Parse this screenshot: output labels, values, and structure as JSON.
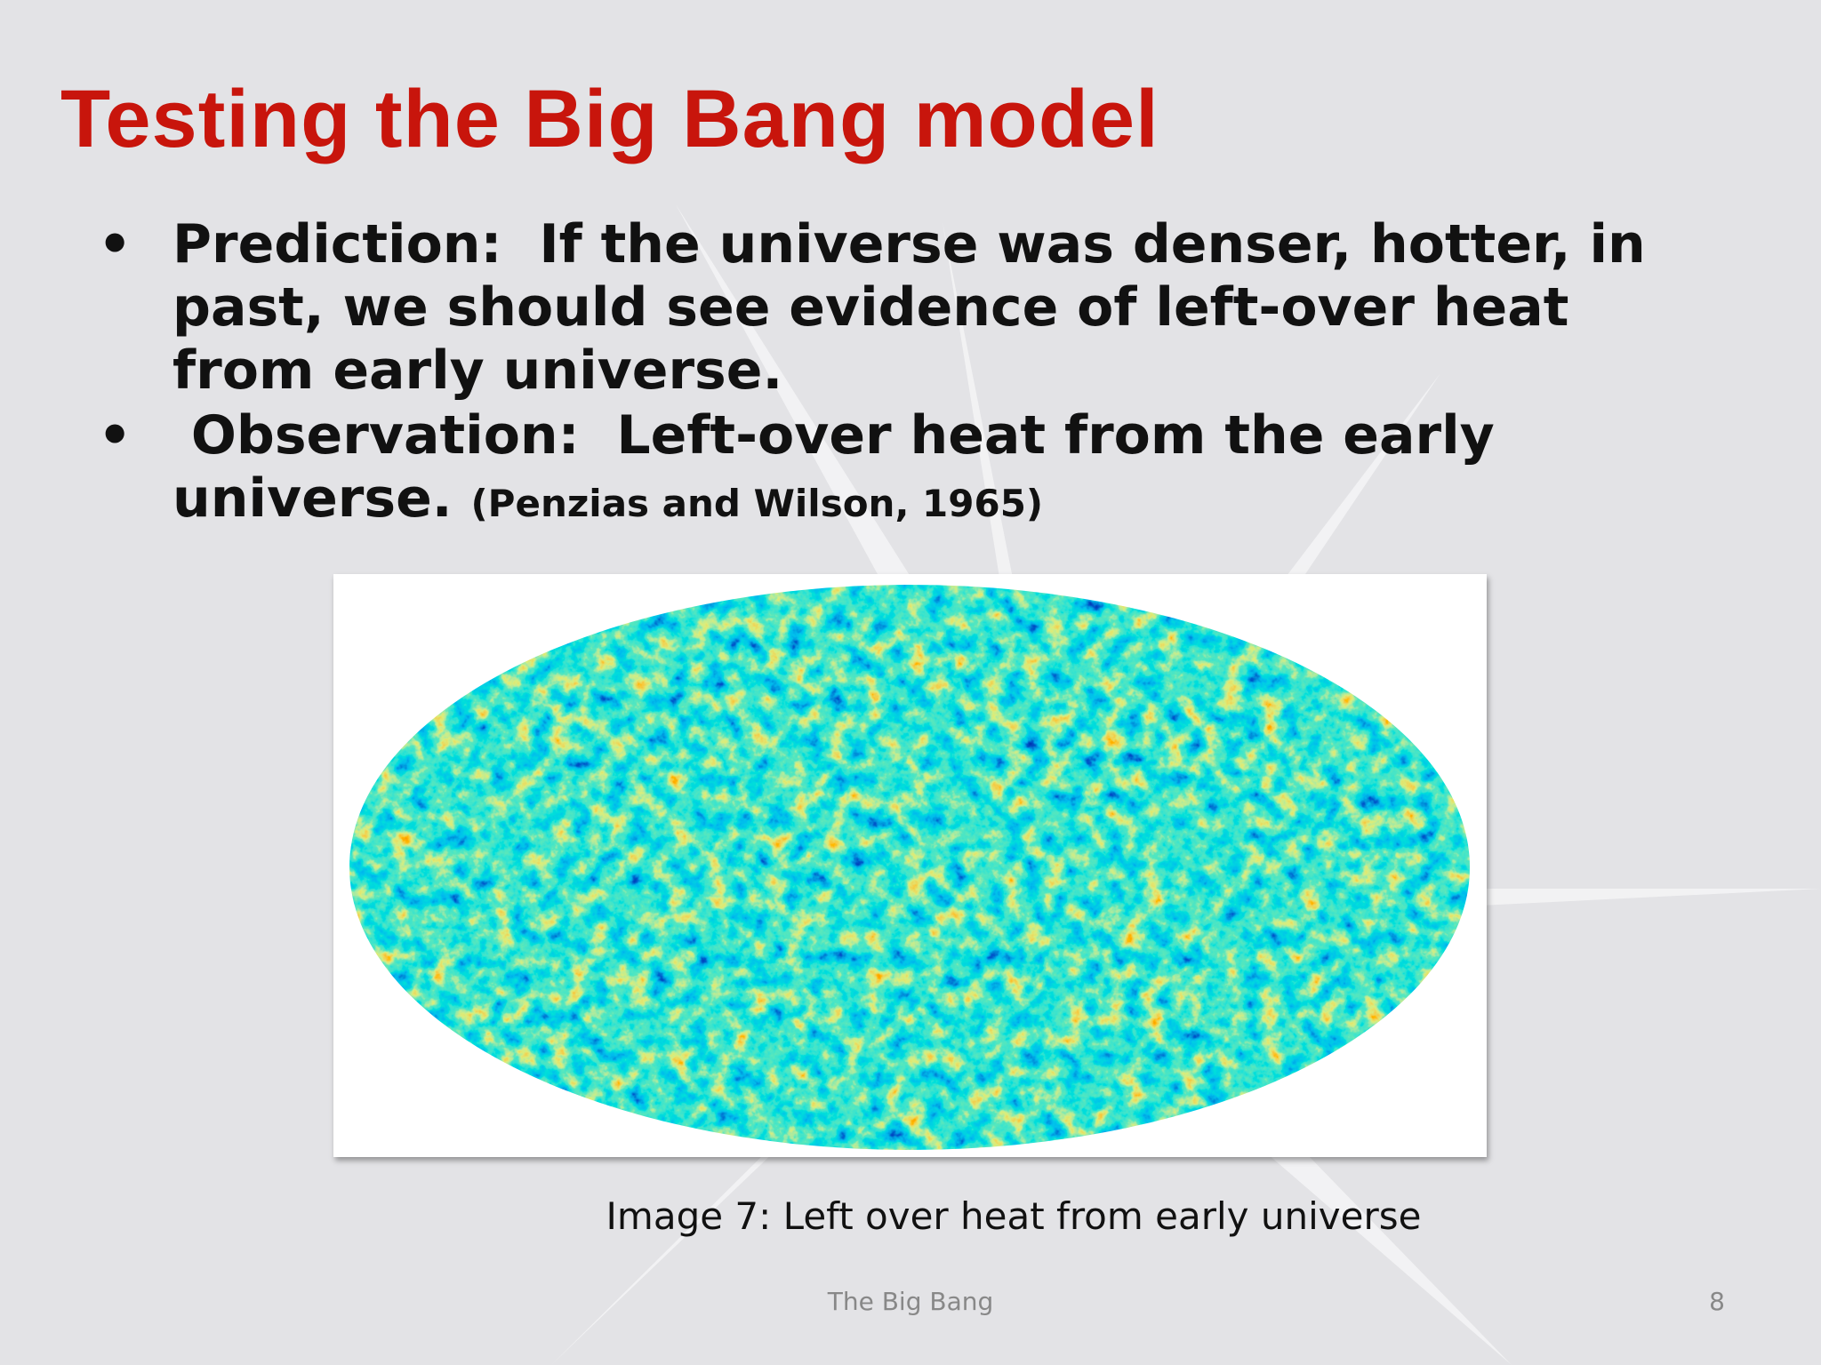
{
  "header": {
    "title": "Testing the Big Bang model"
  },
  "bullets": [
    {
      "label": "Prediction:",
      "text": "If the universe was denser, hotter, in past, we should see evidence of left-over heat from early universe."
    },
    {
      "label": "Observation:",
      "text": "Left-over heat from the early universe.",
      "citation": "(Penzias and Wilson, 1965)"
    }
  ],
  "figure": {
    "caption": "Image 7: Left over heat from early universe"
  },
  "footer": {
    "text": "The Big Bang",
    "page": "8"
  }
}
